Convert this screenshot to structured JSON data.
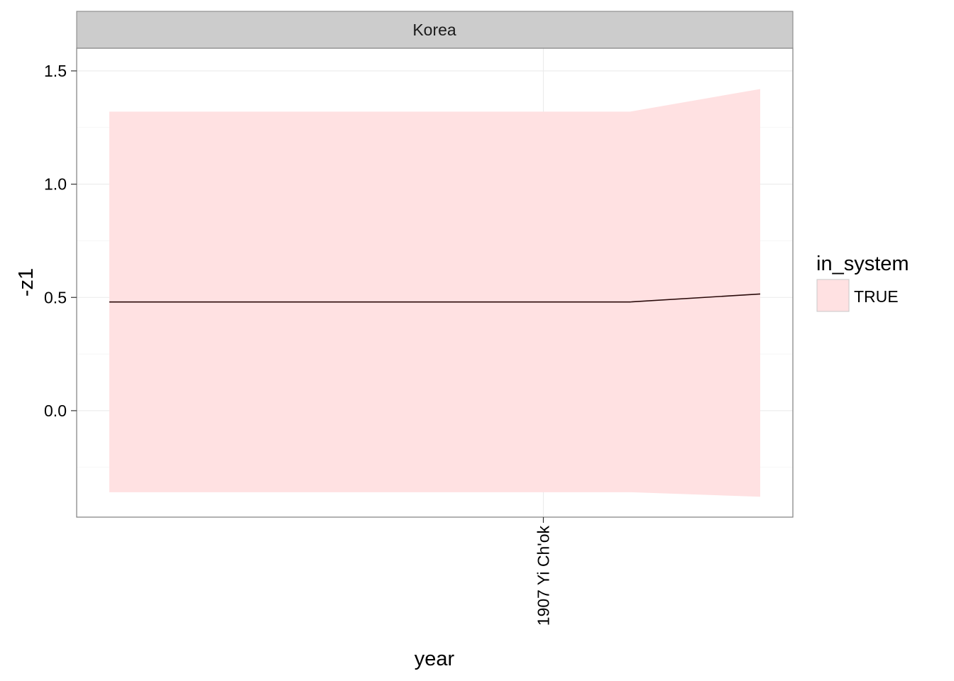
{
  "chart_data": {
    "type": "area",
    "panel_title": "Korea",
    "xlabel": "year",
    "ylabel": "-z1",
    "x_tick_labels": [
      "1907 Yi Ch'ok"
    ],
    "y_ticks": [
      0.0,
      0.5,
      1.0,
      1.5
    ],
    "y_tick_labels": [
      "0.0",
      "0.5",
      "1.0",
      "1.5"
    ],
    "ylim": [
      -0.47,
      1.6
    ],
    "grid": true,
    "legend": {
      "title": "in_system",
      "placement": "right",
      "entries": [
        {
          "label": "TRUE",
          "color": "#ffe1e2"
        }
      ]
    },
    "series": [
      {
        "name": "TRUE",
        "x_index": [
          0,
          0.8,
          1
        ],
        "y": [
          0.48,
          0.48,
          0.515
        ],
        "ymin": [
          -0.36,
          -0.36,
          -0.38
        ],
        "ymax": [
          1.32,
          1.32,
          1.42
        ]
      }
    ],
    "colors": {
      "ribbon": "#ffe1e2",
      "line": "#2a0a0a",
      "strip": "#cccccc",
      "grid": "#ebebeb",
      "border": "#7f7f7f"
    }
  }
}
